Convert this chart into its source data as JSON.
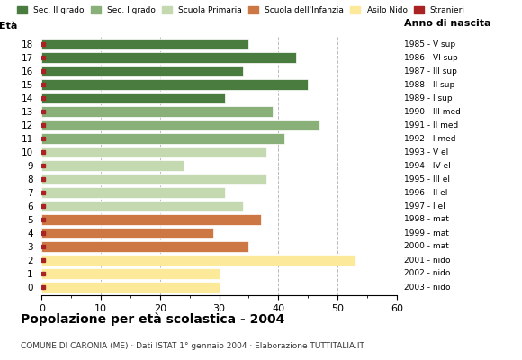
{
  "ages": [
    18,
    17,
    16,
    15,
    14,
    13,
    12,
    11,
    10,
    9,
    8,
    7,
    6,
    5,
    4,
    3,
    2,
    1,
    0
  ],
  "values": [
    35,
    43,
    34,
    45,
    31,
    39,
    47,
    41,
    38,
    24,
    38,
    31,
    34,
    37,
    29,
    35,
    53,
    30,
    30
  ],
  "anno_nascita": [
    "1985 - V sup",
    "1986 - VI sup",
    "1987 - III sup",
    "1988 - II sup",
    "1989 - I sup",
    "1990 - III med",
    "1991 - II med",
    "1992 - I med",
    "1993 - V el",
    "1994 - IV el",
    "1995 - III el",
    "1996 - II el",
    "1997 - I el",
    "1998 - mat",
    "1999 - mat",
    "2000 - mat",
    "2001 - nido",
    "2002 - nido",
    "2003 - nido"
  ],
  "bar_colors": [
    "#4a7c3f",
    "#4a7c3f",
    "#4a7c3f",
    "#4a7c3f",
    "#4a7c3f",
    "#8ab07a",
    "#8ab07a",
    "#8ab07a",
    "#c5d9b0",
    "#c5d9b0",
    "#c5d9b0",
    "#c5d9b0",
    "#c5d9b0",
    "#cc7744",
    "#cc7744",
    "#cc7744",
    "#fde99a",
    "#fde99a",
    "#fde99a"
  ],
  "stranieri_color": "#aa2222",
  "legend_labels": [
    "Sec. II grado",
    "Sec. I grado",
    "Scuola Primaria",
    "Scuola dell'Infanzia",
    "Asilo Nido",
    "Stranieri"
  ],
  "legend_colors": [
    "#4a7c3f",
    "#8ab07a",
    "#c5d9b0",
    "#cc7744",
    "#fde99a",
    "#aa2222"
  ],
  "title": "Popolazione per età scolastica - 2004",
  "subtitle": "COMUNE DI CARONIA (ME) · Dati ISTAT 1° gennaio 2004 · Elaborazione TUTTITALIA.IT",
  "xlabel_eta": "Età",
  "xlabel_anno": "Anno di nascita",
  "xlim": [
    0,
    60
  ],
  "xticks": [
    0,
    10,
    20,
    30,
    40,
    50,
    60
  ],
  "background_color": "#ffffff",
  "grid_color": "#bbbbbb"
}
